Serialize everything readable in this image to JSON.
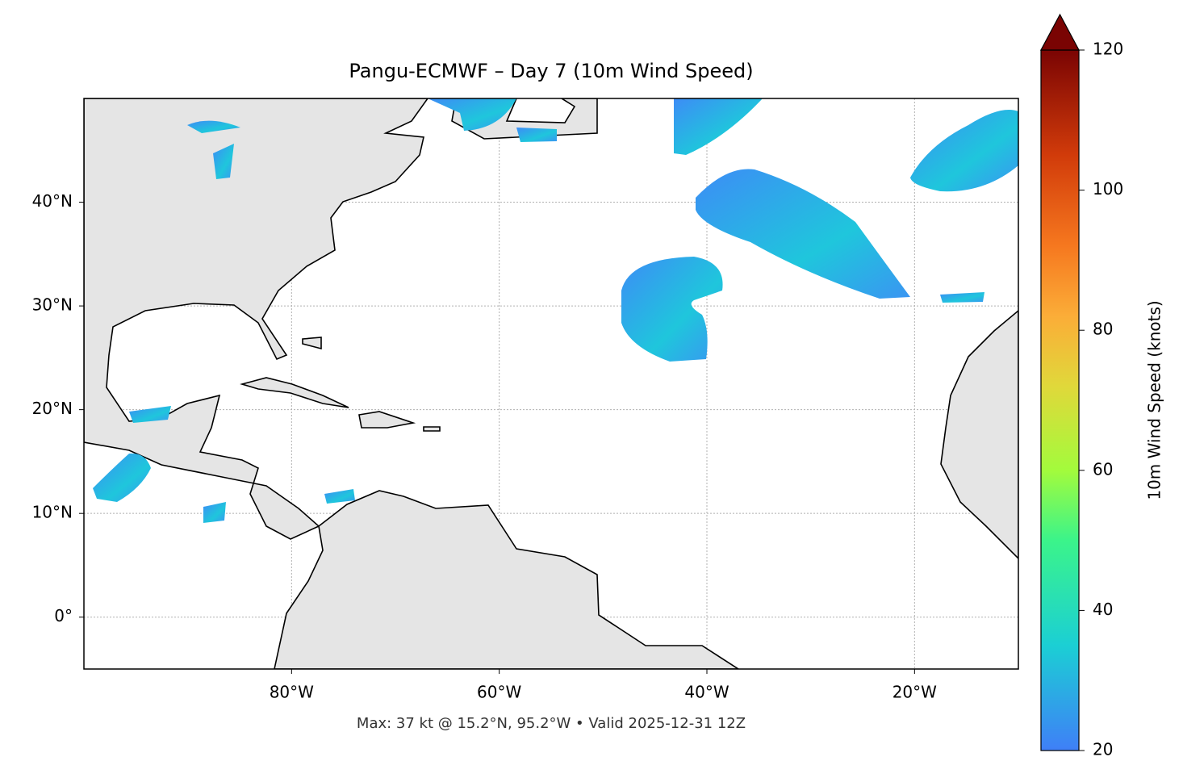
{
  "title": "Pangu-ECMWF – Day 7 (10m Wind Speed)",
  "footer": "Max: 37 kt @ 15.2°N, 95.2°W • Valid 2025-12-31 12Z",
  "map": {
    "lonlim": [
      -100,
      -10
    ],
    "latlim": [
      -5,
      50
    ],
    "lon_ticks": [
      {
        "value": -80,
        "label": "80°W"
      },
      {
        "value": -60,
        "label": "60°W"
      },
      {
        "value": -40,
        "label": "40°W"
      },
      {
        "value": -20,
        "label": "20°W"
      }
    ],
    "lat_ticks": [
      {
        "value": 0,
        "label": "0°"
      },
      {
        "value": 10,
        "label": "10°N"
      },
      {
        "value": 20,
        "label": "20°N"
      },
      {
        "value": 30,
        "label": "30°N"
      },
      {
        "value": 40,
        "label": "40°N"
      }
    ]
  },
  "colorbar": {
    "label": "10m Wind Speed (knots)",
    "lim": [
      20,
      120
    ],
    "ticks": [
      20,
      40,
      60,
      80,
      100,
      120
    ]
  }
}
